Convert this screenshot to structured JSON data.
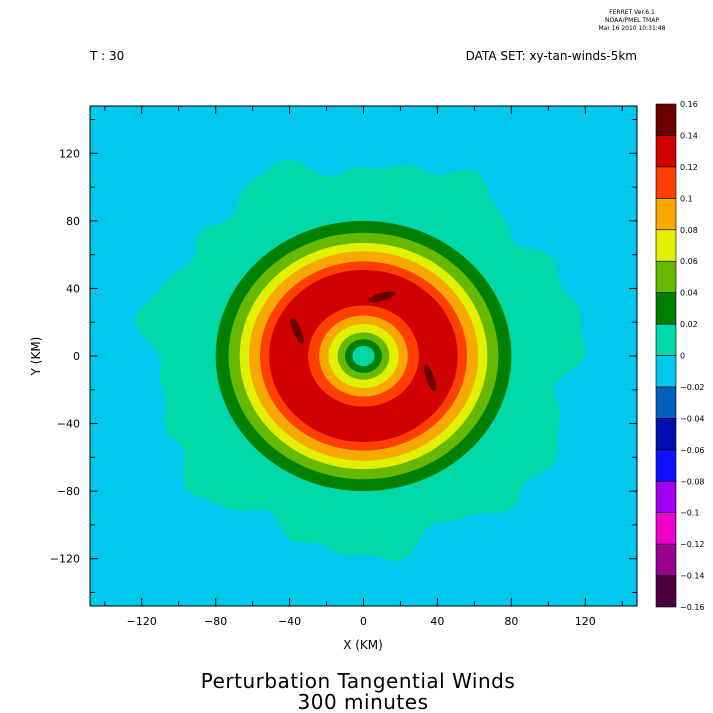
{
  "header": {
    "software": [
      "FERRET Ver.6.1",
      "NOAA/PMEL TMAP",
      "Mar 16 2010 10:31:48"
    ],
    "time_label": "T : 30",
    "dataset_label": "DATA SET: xy-tan-winds-5km"
  },
  "chart_data": {
    "type": "heatmap",
    "title": "Perturbation Tangential Winds",
    "subtitle": "300 minutes",
    "xlabel": "X (KM)",
    "ylabel": "Y (KM)",
    "xlim": [
      -148,
      148
    ],
    "ylim": [
      -148,
      148
    ],
    "x_ticks": [
      -120,
      -80,
      -40,
      0,
      40,
      80,
      120
    ],
    "y_ticks": [
      -120,
      -80,
      -40,
      0,
      40,
      80,
      120
    ],
    "x_tick_labels": [
      "−120",
      "−80",
      "−40",
      "0",
      "40",
      "80",
      "120"
    ],
    "y_tick_labels": [
      "−120",
      "−80",
      "−40",
      "0",
      "40",
      "80",
      "120"
    ],
    "colorbar": {
      "levels": [
        -0.16,
        -0.14,
        -0.12,
        -0.1,
        -0.08,
        -0.06,
        -0.04,
        -0.02,
        0,
        0.02,
        0.04,
        0.06,
        0.08,
        0.1,
        0.12,
        0.14,
        0.16
      ],
      "level_labels": [
        "−0.16",
        "−0.14",
        "−0.12",
        "−0.1",
        "−0.08",
        "−0.06",
        "−0.04",
        "−0.02",
        "0",
        "0.02",
        "0.04",
        "0.06",
        "0.08",
        "0.1",
        "0.12",
        "0.14",
        "0.16"
      ],
      "colors": [
        "#4a0040",
        "#9a0090",
        "#ee00cc",
        "#a000f0",
        "#1010ff",
        "#0010b0",
        "#0060c0",
        "#00c8ec",
        "#00d8a8",
        "#008000",
        "#66b800",
        "#e0f000",
        "#f8a800",
        "#ff4000",
        "#d00000",
        "#6a0000"
      ]
    },
    "contour_field": {
      "shape": "axisymmetric ring centered at origin",
      "background_value_range": [
        -0.02,
        0
      ],
      "outer_envelope_radius_km": 115,
      "rings": [
        {
          "r_outer_km": 115,
          "value_range": [
            0,
            0.02
          ]
        },
        {
          "r_outer_km": 80,
          "value_range": [
            0.02,
            0.04
          ]
        },
        {
          "r_outer_km": 73,
          "value_range": [
            0.04,
            0.06
          ]
        },
        {
          "r_outer_km": 67,
          "value_range": [
            0.06,
            0.08
          ]
        },
        {
          "r_outer_km": 62,
          "value_range": [
            0.08,
            0.1
          ]
        },
        {
          "r_outer_km": 56,
          "value_range": [
            0.1,
            0.12
          ]
        },
        {
          "r_outer_km": 51,
          "value_range": [
            0.12,
            0.14
          ]
        },
        {
          "r_outer_km": 30,
          "value_range": [
            0.1,
            0.12
          ]
        },
        {
          "r_outer_km": 24,
          "value_range": [
            0.08,
            0.1
          ]
        },
        {
          "r_outer_km": 19,
          "value_range": [
            0.06,
            0.08
          ]
        },
        {
          "r_outer_km": 14,
          "value_range": [
            0.04,
            0.06
          ]
        },
        {
          "r_outer_km": 10,
          "value_range": [
            0.02,
            0.04
          ]
        },
        {
          "r_outer_km": 6,
          "value_range": [
            0,
            0.02
          ]
        }
      ],
      "maxima_patches": [
        {
          "center": [
            10,
            35
          ],
          "value_range": [
            0.14,
            0.16
          ]
        },
        {
          "center": [
            -36,
            15
          ],
          "value_range": [
            0.14,
            0.16
          ]
        },
        {
          "center": [
            36,
            -13
          ],
          "value_range": [
            0.14,
            0.16
          ]
        }
      ]
    }
  }
}
